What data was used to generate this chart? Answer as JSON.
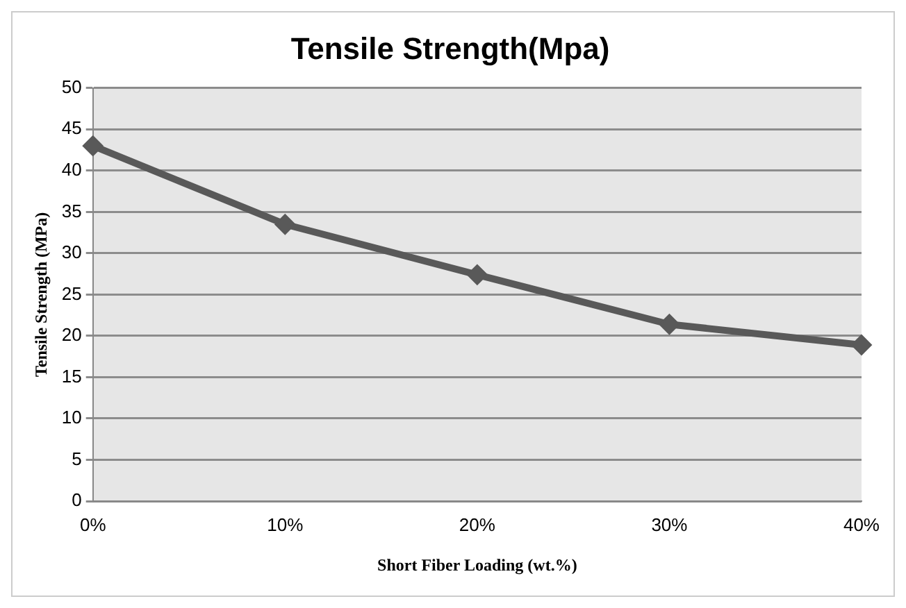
{
  "chart_data": {
    "type": "line",
    "title": "Tensile Strength(Mpa)",
    "xlabel": "Short Fiber Loading (wt.%)",
    "ylabel": "Tensile Strength (MPa)",
    "categories": [
      "0%",
      "10%",
      "20%",
      "30%",
      "40%"
    ],
    "series": [
      {
        "color": "#595959",
        "values": [
          43,
          33.5,
          27.4,
          21.4,
          18.9
        ]
      }
    ],
    "ylim": [
      0,
      50
    ],
    "yticks": [
      0,
      5,
      10,
      15,
      20,
      25,
      30,
      35,
      40,
      45,
      50
    ],
    "grid": "y",
    "legend": false,
    "marker": "diamond",
    "line_style": "solid"
  }
}
